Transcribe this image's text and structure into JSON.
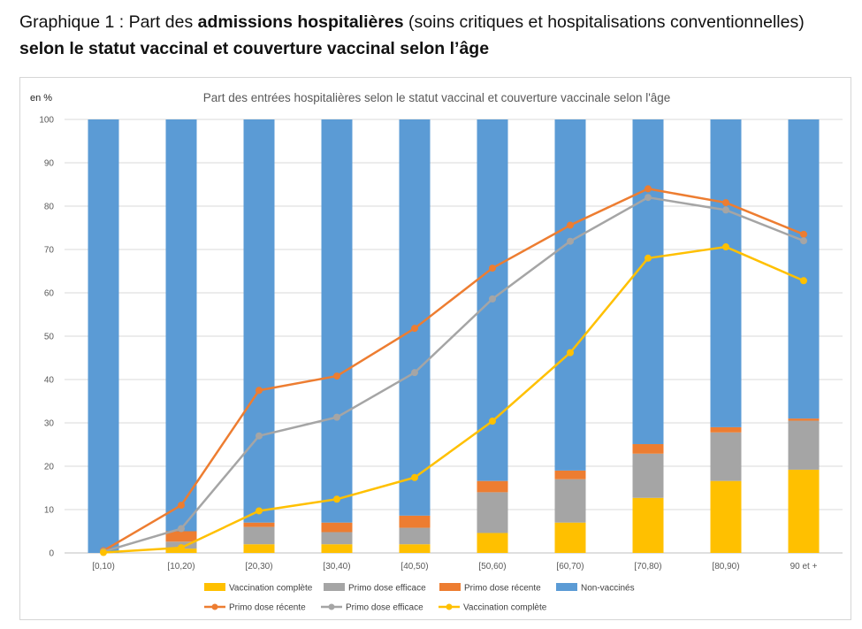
{
  "heading": {
    "line1_prefix": "Graphique 1 : Part des ",
    "line1_bold": "admissions hospitalières",
    "line1_suffix": " (soins critiques et hospitalisations conventionnelles)",
    "line2": "selon le statut vaccinal et couverture vaccinal selon l’âge"
  },
  "chart_data": {
    "type": "bar",
    "subtype": "stacked-bar-with-lines",
    "title": "Part des entrées hospitalières selon le statut vaccinal et couverture vaccinale selon l'âge",
    "ylabel": "en %",
    "ylim": [
      0,
      100
    ],
    "yticks": [
      0,
      10,
      20,
      30,
      40,
      50,
      60,
      70,
      80,
      90,
      100
    ],
    "grid": true,
    "legend_position": "bottom",
    "categories": [
      "[0,10)",
      "[10,20)",
      "[20,30)",
      "[30,40)",
      "[40,50)",
      "[50,60)",
      "[60,70)",
      "[70,80)",
      "[80,90)",
      "90 et +"
    ],
    "bar_series": [
      {
        "name": "Vaccination complète",
        "color": "#FFC000",
        "values": [
          0,
          1.0,
          2.0,
          2.0,
          2.0,
          4.6,
          7.0,
          12.7,
          16.6,
          19.2
        ]
      },
      {
        "name": "Primo dose efficace",
        "color": "#A5A5A5",
        "values": [
          0,
          1.6,
          4.0,
          2.8,
          3.8,
          9.4,
          10.0,
          10.2,
          11.2,
          11.3
        ]
      },
      {
        "name": "Primo dose récente",
        "color": "#ED7D31",
        "values": [
          0,
          2.4,
          1.0,
          2.2,
          2.8,
          2.6,
          2.0,
          2.2,
          1.2,
          0.5
        ]
      },
      {
        "name": "Non-vaccinés",
        "color": "#5B9BD5",
        "values": [
          100,
          95.0,
          93.0,
          93.0,
          91.4,
          83.4,
          81.0,
          74.9,
          71.0,
          69.0
        ]
      }
    ],
    "line_series": [
      {
        "name": "Primo dose récente",
        "color": "#ED7D31",
        "values": [
          0.5,
          11.0,
          37.5,
          40.8,
          51.8,
          65.7,
          75.6,
          84.0,
          80.8,
          73.5
        ]
      },
      {
        "name": "Primo dose efficace",
        "color": "#A5A5A5",
        "values": [
          0.3,
          5.6,
          27.0,
          31.3,
          41.6,
          58.6,
          71.9,
          82.0,
          79.1,
          72.0
        ]
      },
      {
        "name": "Vaccination complète",
        "color": "#FFC000",
        "values": [
          0.1,
          1.2,
          9.7,
          12.4,
          17.4,
          30.4,
          46.2,
          68.0,
          70.6,
          62.8
        ]
      }
    ]
  }
}
